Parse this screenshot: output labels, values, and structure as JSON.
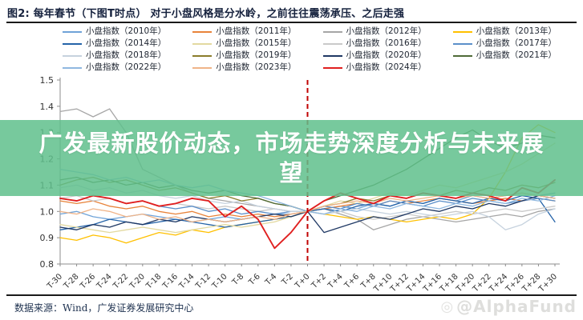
{
  "header": {
    "title": "图2:  每年春节（下图T时点）  对于小盘风格是分水岭，之前往往震荡承压、之后走强"
  },
  "overlay": {
    "text": "广发最新股价动态，市场走势深度分析与未来展望",
    "background_color": "#5fc08c",
    "text_color": "#ffffff"
  },
  "footer": {
    "source": "数据来源：Wind，广发证券发展研究中心",
    "watermark": "@AlphaFund",
    "watermark_icon": "◎"
  },
  "chart_data": {
    "type": "line",
    "x": [
      "T-30",
      "T-28",
      "T-26",
      "T-24",
      "T-22",
      "T-20",
      "T-18",
      "T-16",
      "T-14",
      "T-12",
      "T-10",
      "T-8",
      "T-6",
      "T-4",
      "T-2",
      "T+0",
      "T+2",
      "T+4",
      "T+6",
      "T+8",
      "T+10",
      "T+12",
      "T+14",
      "T+16",
      "T+18",
      "T+20",
      "T+22",
      "T+24",
      "T+26",
      "T+28",
      "T+30"
    ],
    "ylim": [
      0.8,
      1.5
    ],
    "yticks": [
      "1.5",
      "1.4",
      "1.3",
      "1.2",
      "1.1",
      "1.0",
      "0.9",
      "0.8"
    ],
    "grid": "off",
    "legend_position": "top",
    "annotation": {
      "vline_x": "T+0",
      "style": "dashed",
      "color": "#c00000"
    },
    "axis_color": "#8c8c8c",
    "series": [
      {
        "name": "小盘指数（2010年）",
        "color": "#6FA3D8",
        "values": [
          0.99,
          1.0,
          0.98,
          0.97,
          0.98,
          0.99,
          0.98,
          0.97,
          0.96,
          0.97,
          0.98,
          0.97,
          0.98,
          0.99,
          0.99,
          1.0,
          1.01,
          1.02,
          1.01,
          1.03,
          1.02,
          1.04,
          1.03,
          1.05,
          1.04,
          1.06,
          1.05,
          1.06,
          1.07,
          1.06,
          1.07
        ]
      },
      {
        "name": "小盘指数（2011年）",
        "color": "#E8833A",
        "values": [
          1.04,
          1.03,
          1.04,
          1.02,
          1.01,
          1.02,
          1.0,
          0.99,
          1.0,
          0.98,
          0.99,
          0.98,
          0.99,
          0.98,
          0.99,
          1.0,
          1.01,
          1.02,
          1.03,
          1.02,
          1.04,
          1.03,
          1.04,
          1.05,
          1.04,
          1.03,
          1.04,
          1.05,
          1.04,
          1.05,
          1.04
        ]
      },
      {
        "name": "小盘指数（2012年）",
        "color": "#A6A6A6",
        "values": [
          1.38,
          1.39,
          1.36,
          1.39,
          1.3,
          1.16,
          1.13,
          1.1,
          1.07,
          1.05,
          1.04,
          1.03,
          1.02,
          1.01,
          1.0,
          1.0,
          1.01,
          0.99,
          0.97,
          0.93,
          0.95,
          0.97,
          0.98,
          0.97,
          0.96,
          0.97,
          0.98,
          0.99,
          0.98,
          1.0,
          1.01
        ]
      },
      {
        "name": "小盘指数（2013年）",
        "color": "#FFC000",
        "values": [
          0.9,
          0.89,
          0.91,
          0.9,
          0.88,
          0.9,
          0.92,
          0.91,
          0.93,
          0.92,
          0.94,
          0.95,
          0.96,
          0.97,
          0.98,
          1.0,
          0.99,
          0.98,
          0.97,
          0.98,
          0.97,
          0.96,
          0.97,
          0.98,
          0.97,
          0.99,
          1.05,
          1.15,
          1.28,
          1.33,
          1.3
        ]
      },
      {
        "name": "小盘指数（2014年）",
        "color": "#2563A8",
        "values": [
          0.93,
          0.94,
          0.95,
          0.97,
          0.96,
          0.95,
          0.96,
          0.97,
          0.96,
          0.95,
          0.94,
          0.95,
          0.96,
          0.97,
          0.98,
          1.0,
          1.01,
          1.0,
          1.02,
          1.03,
          1.02,
          1.04,
          1.03,
          1.05,
          1.04,
          1.03,
          1.05,
          1.04,
          1.06,
          1.05,
          0.96
        ]
      },
      {
        "name": "小盘指数（2015年）",
        "color": "#E3D9A0",
        "values": [
          0.95,
          0.94,
          0.93,
          0.92,
          0.93,
          0.94,
          0.93,
          0.92,
          0.93,
          0.94,
          0.95,
          0.94,
          0.95,
          0.96,
          0.98,
          1.0,
          1.02,
          1.04,
          1.03,
          1.05,
          1.07,
          1.06,
          1.08,
          1.1,
          1.09,
          1.11,
          1.13,
          1.15,
          1.18,
          1.22,
          1.26
        ]
      },
      {
        "name": "小盘指数（2016年）",
        "color": "#C9C9C9",
        "values": [
          1.05,
          1.06,
          1.04,
          1.05,
          1.03,
          1.04,
          1.02,
          1.03,
          1.02,
          1.01,
          1.02,
          1.01,
          1.0,
          1.01,
          1.0,
          1.0,
          0.99,
          1.0,
          0.98,
          0.97,
          0.98,
          0.99,
          0.98,
          0.99,
          1.0,
          0.99,
          1.0,
          1.01,
          1.0,
          1.01,
          1.02
        ]
      },
      {
        "name": "小盘指数（2017年）",
        "color": "#5B8FC9",
        "values": [
          1.05,
          1.04,
          1.06,
          1.05,
          1.03,
          1.04,
          1.02,
          1.01,
          1.02,
          1.0,
          1.01,
          0.99,
          1.0,
          0.99,
          1.0,
          1.0,
          1.02,
          1.01,
          1.03,
          1.02,
          1.04,
          1.03,
          1.02,
          1.04,
          1.03,
          1.05,
          1.04,
          1.03,
          1.04,
          1.05,
          1.04
        ]
      },
      {
        "name": "小盘指数（2018年）",
        "color": "#C6D2DE",
        "values": [
          1.09,
          1.1,
          1.08,
          1.09,
          1.07,
          1.08,
          1.06,
          1.05,
          1.06,
          1.04,
          1.03,
          1.04,
          1.02,
          1.01,
          1.0,
          1.0,
          0.99,
          1.0,
          1.01,
          1.0,
          0.99,
          1.0,
          0.99,
          0.98,
          0.99,
          1.0,
          0.98,
          0.93,
          0.95,
          0.99,
          1.01
        ]
      },
      {
        "name": "小盘指数（2019年）",
        "color": "#8B7D2A",
        "values": [
          1.1,
          1.12,
          1.13,
          1.11,
          1.12,
          1.1,
          1.08,
          1.09,
          1.07,
          1.05,
          1.06,
          1.04,
          1.05,
          1.03,
          1.02,
          1.0,
          1.02,
          1.03,
          1.05,
          1.04,
          1.06,
          1.05,
          1.07,
          1.06,
          1.08,
          1.07,
          1.09,
          1.08,
          1.1,
          1.09,
          1.11
        ]
      },
      {
        "name": "小盘指数（2020年）",
        "color": "#1F3864",
        "values": [
          0.94,
          0.93,
          0.95,
          0.94,
          0.96,
          0.95,
          0.97,
          0.96,
          0.98,
          0.97,
          0.96,
          0.97,
          0.98,
          0.99,
          0.98,
          1.0,
          0.92,
          0.94,
          0.96,
          0.98,
          0.97,
          0.99,
          1.01,
          1.0,
          1.02,
          1.01,
          1.03,
          1.02,
          1.04,
          1.06,
          1.05
        ]
      },
      {
        "name": "小盘指数（2021年）",
        "color": "#4F6B37",
        "values": [
          1.12,
          1.13,
          1.11,
          1.12,
          1.1,
          1.11,
          1.09,
          1.1,
          1.08,
          1.07,
          1.08,
          1.06,
          1.05,
          1.03,
          1.02,
          1.0,
          1.04,
          1.06,
          1.08,
          1.1,
          1.13,
          1.16,
          1.2,
          1.24,
          1.28,
          1.31,
          1.27,
          1.24,
          1.26,
          1.29,
          1.28
        ]
      },
      {
        "name": "小盘指数（2022年）",
        "color": "#8FB8E0",
        "values": [
          1.16,
          1.15,
          1.14,
          1.12,
          1.13,
          1.11,
          1.12,
          1.1,
          1.09,
          1.1,
          1.08,
          1.07,
          1.06,
          1.04,
          1.02,
          1.0,
          0.99,
          1.01,
          1.0,
          1.02,
          1.01,
          1.03,
          1.02,
          1.01,
          1.03,
          1.02,
          1.04,
          1.03,
          1.05,
          1.04,
          1.06
        ]
      },
      {
        "name": "小盘指数（2023年）",
        "color": "#F0B488",
        "values": [
          1.0,
          0.99,
          1.01,
          1.0,
          0.98,
          0.99,
          0.97,
          0.98,
          0.96,
          0.97,
          0.96,
          0.97,
          0.98,
          0.97,
          0.99,
          1.0,
          1.02,
          1.03,
          1.04,
          1.03,
          1.05,
          1.04,
          1.05,
          1.06,
          1.05,
          1.06,
          1.05,
          1.06,
          1.07,
          1.06,
          1.05
        ]
      },
      {
        "name": "小盘指数（2024年）",
        "color": "#E02020",
        "values": [
          1.05,
          1.04,
          1.06,
          1.05,
          1.03,
          1.04,
          1.02,
          1.03,
          1.05,
          1.04,
          0.98,
          1.02,
          0.97,
          0.86,
          0.92,
          1.0,
          1.04,
          1.07,
          1.05,
          1.03,
          1.06,
          1.05,
          1.07,
          1.06,
          1.05,
          1.07,
          1.06,
          1.04,
          1.09,
          1.07,
          1.12
        ]
      }
    ]
  }
}
